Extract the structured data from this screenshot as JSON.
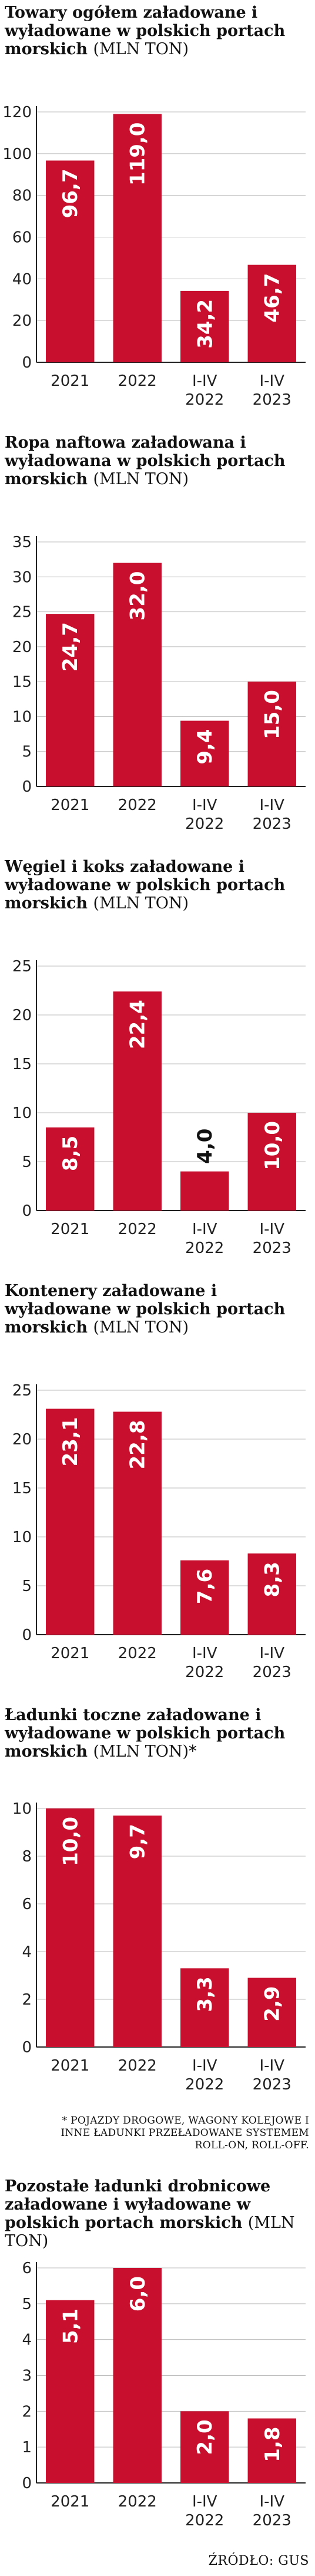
{
  "colors": {
    "bar": "#c8102e",
    "text": "#111111",
    "axis": "#222222"
  },
  "chart_data": [
    {
      "type": "bar",
      "title": "Towary ogółem załadowane i wyładowane w polskich portach morskich",
      "unit": "(MLN TON)",
      "categories": [
        "2021",
        "2022",
        "I-IV 2022",
        "I-IV 2023"
      ],
      "values": [
        96.7,
        119.0,
        34.2,
        46.7
      ],
      "value_labels": [
        "96,7",
        "119,0",
        "34,2",
        "46,7"
      ],
      "ylim": [
        0,
        120
      ],
      "yticks": [
        0,
        20,
        40,
        60,
        80,
        100,
        120
      ]
    },
    {
      "type": "bar",
      "title": "Ropa naftowa załadowana i wyładowana w polskich portach morskich",
      "unit": "(MLN TON)",
      "categories": [
        "2021",
        "2022",
        "I-IV 2022",
        "I-IV 2023"
      ],
      "values": [
        24.7,
        32.0,
        9.4,
        15.0
      ],
      "value_labels": [
        "24,7",
        "32,0",
        "9,4",
        "15,0"
      ],
      "ylim": [
        0,
        35
      ],
      "yticks": [
        0,
        5,
        10,
        15,
        20,
        25,
        30,
        35
      ]
    },
    {
      "type": "bar",
      "title": "Węgiel i koks załadowane i wyładowane w polskich portach morskich",
      "unit": "(MLN TON)",
      "categories": [
        "2021",
        "2022",
        "I-IV 2022",
        "I-IV 2023"
      ],
      "values": [
        8.5,
        22.4,
        4.0,
        10.0
      ],
      "value_labels": [
        "8,5",
        "22,4",
        "4,0",
        "10,0"
      ],
      "ylim": [
        0,
        25
      ],
      "yticks": [
        0,
        5,
        10,
        15,
        20,
        25
      ]
    },
    {
      "type": "bar",
      "title": "Kontenery załadowane i wyładowane w polskich portach morskich",
      "unit": "(MLN TON)",
      "categories": [
        "2021",
        "2022",
        "I-IV 2022",
        "I-IV 2023"
      ],
      "values": [
        23.1,
        22.8,
        7.6,
        8.3
      ],
      "value_labels": [
        "23,1",
        "22,8",
        "7,6",
        "8,3"
      ],
      "ylim": [
        0,
        25
      ],
      "yticks": [
        0,
        5,
        10,
        15,
        20,
        25
      ]
    },
    {
      "type": "bar",
      "title": "Ładunki toczne załadowane i wyładowane w polskich portach morskich",
      "unit": "(MLN TON)*",
      "categories": [
        "2021",
        "2022",
        "I-IV 2022",
        "I-IV 2023"
      ],
      "values": [
        10.0,
        9.7,
        3.3,
        2.9
      ],
      "value_labels": [
        "10,0",
        "9,7",
        "3,3",
        "2,9"
      ],
      "ylim": [
        0,
        10
      ],
      "yticks": [
        0,
        2,
        4,
        6,
        8,
        10
      ]
    },
    {
      "type": "bar",
      "title": "Pozostałe ładunki drobnicowe załadowane i wyładowane w polskich portach morskich",
      "unit": "(MLN TON)",
      "categories": [
        "2021",
        "2022",
        "I-IV 2022",
        "I-IV 2023"
      ],
      "values": [
        5.1,
        6.0,
        2.0,
        1.8
      ],
      "value_labels": [
        "5,1",
        "6,0",
        "2,0",
        "1,8"
      ],
      "ylim": [
        0,
        6
      ],
      "yticks": [
        0,
        1,
        2,
        3,
        4,
        5,
        6
      ]
    }
  ],
  "footnote": "* POJAZDY DROGOWE, WAGONY KOLEJOWE I INNE ŁADUNKI PRZEŁADOWANE SYSTEMEM ROLL-ON, ROLL-OFF.",
  "source": "ŹRÓDŁO: GUS"
}
